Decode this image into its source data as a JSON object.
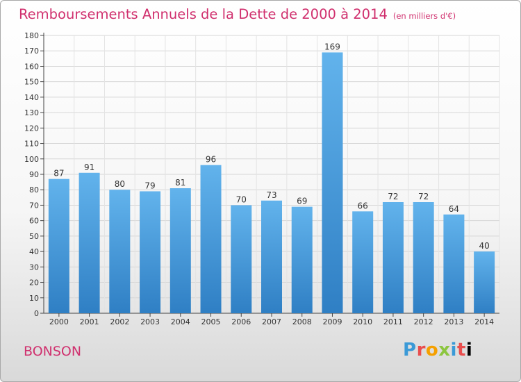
{
  "header": {
    "title": "Remboursements Annuels de la Dette de 2000 à 2014",
    "unit": "(en milliers d'€)"
  },
  "footer": {
    "commune": "BONSON",
    "logo_letters": [
      "P",
      "r",
      "o",
      "x",
      "i",
      "t",
      "i"
    ]
  },
  "colors": {
    "bar_top": "#62b3ec",
    "bar_bottom": "#2f7fc4",
    "title": "#d0306e"
  },
  "chart_data": {
    "type": "bar",
    "title": "Remboursements Annuels de la Dette de 2000 à 2014",
    "categories": [
      "2000",
      "2001",
      "2002",
      "2003",
      "2004",
      "2005",
      "2006",
      "2007",
      "2008",
      "2009",
      "2010",
      "2011",
      "2012",
      "2013",
      "2014"
    ],
    "values": [
      87,
      91,
      80,
      79,
      81,
      96,
      70,
      73,
      69,
      169,
      66,
      72,
      72,
      64,
      40
    ],
    "ylim": [
      0,
      180
    ],
    "yticks": [
      0,
      10,
      20,
      30,
      40,
      50,
      60,
      70,
      80,
      90,
      100,
      110,
      120,
      130,
      140,
      150,
      160,
      170,
      180
    ],
    "grid": true,
    "legend": "none"
  }
}
